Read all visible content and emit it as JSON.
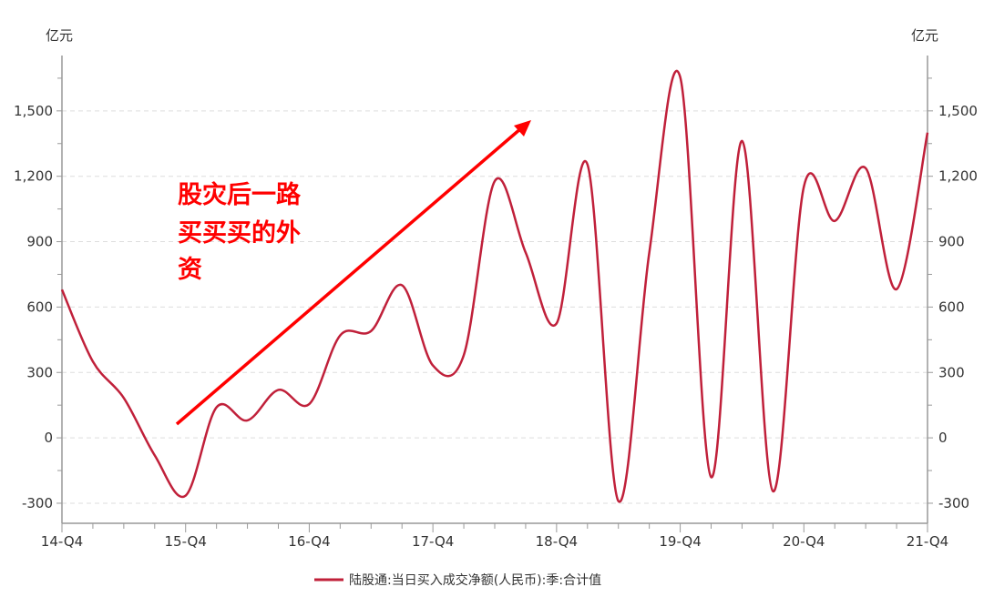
{
  "chart_data": {
    "type": "line",
    "smooth": true,
    "x": [
      "14-Q4",
      "15-Q1",
      "15-Q2",
      "15-Q3",
      "15-Q4",
      "16-Q1",
      "16-Q2",
      "16-Q3",
      "16-Q4",
      "17-Q1",
      "17-Q2",
      "17-Q3",
      "17-Q4",
      "18-Q1",
      "18-Q2",
      "18-Q3",
      "18-Q4",
      "19-Q1",
      "19-Q2",
      "19-Q3",
      "19-Q4",
      "20-Q1",
      "20-Q2",
      "20-Q3",
      "20-Q4",
      "21-Q1",
      "21-Q2",
      "21-Q3",
      "21-Q4"
    ],
    "x_tick_labels": [
      "14-Q4",
      "15-Q4",
      "16-Q4",
      "17-Q4",
      "18-Q4",
      "19-Q4",
      "20-Q4",
      "21-Q4"
    ],
    "series": [
      {
        "name": "陆股通:当日买入成交净额(人民币):季:合计值",
        "color": "#c0203a",
        "values": [
          680,
          350,
          183,
          -80,
          -265,
          140,
          80,
          220,
          155,
          470,
          490,
          700,
          332,
          380,
          1178,
          850,
          525,
          1254,
          -290,
          850,
          1655,
          -180,
          1362,
          -245,
          1152,
          995,
          1237,
          682,
          1400
        ]
      }
    ],
    "y_ticks": [
      -300,
      0,
      300,
      600,
      900,
      1200,
      1500
    ],
    "y_tick_labels": [
      "-300",
      "0",
      "300",
      "600",
      "900",
      "1,200",
      "1,500"
    ],
    "ylim": [
      -392,
      1754
    ],
    "ylabel_left": "亿元",
    "ylabel_right": "亿元",
    "grid": "horizontal dashed",
    "legend": "bottom",
    "annotation": {
      "lines": [
        "股灾后一路",
        "买买买的外",
        "资"
      ],
      "color": "#ff0000",
      "arrow": "upward trend arrow"
    }
  }
}
